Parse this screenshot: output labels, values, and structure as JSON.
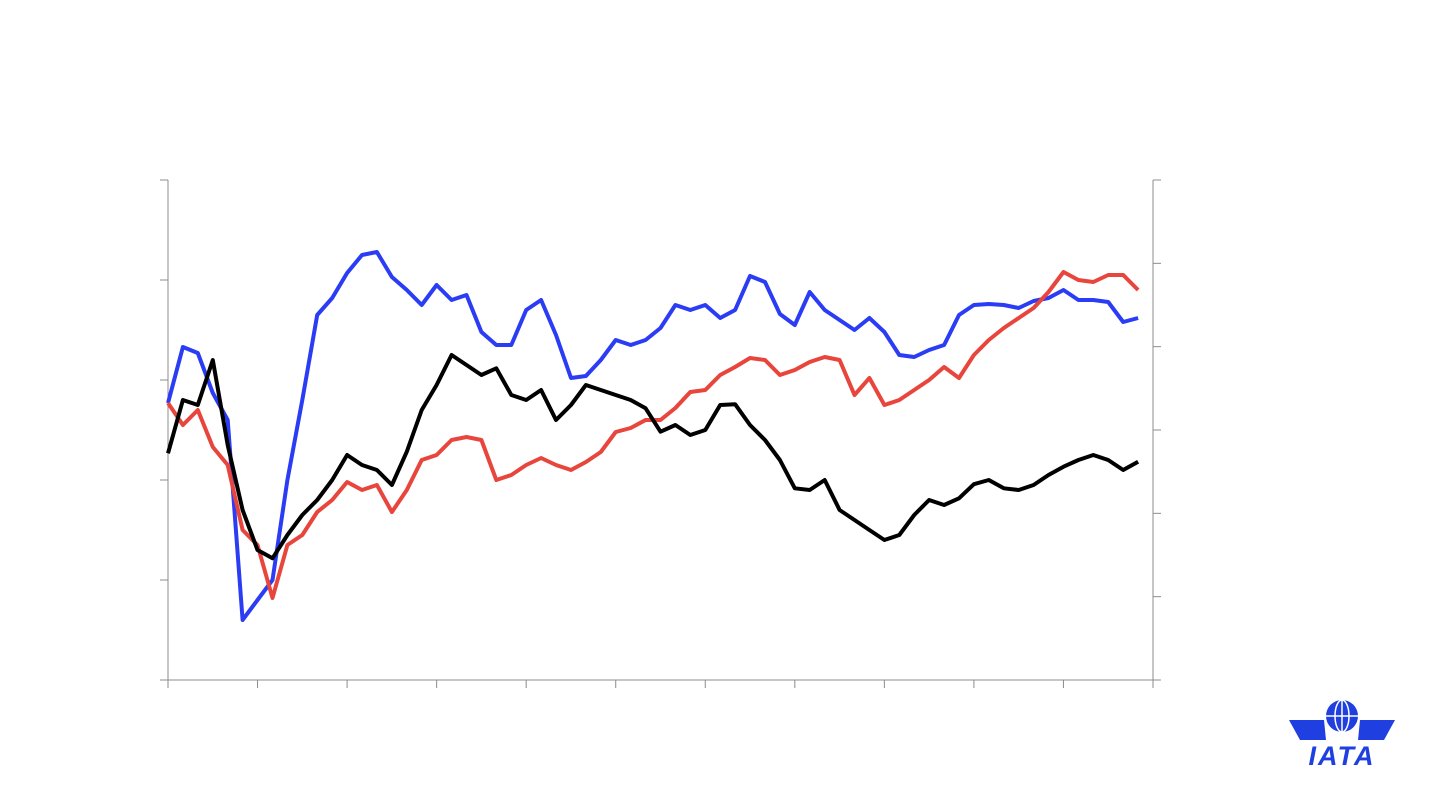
{
  "chart_data": {
    "type": "line",
    "x": [
      0,
      2,
      4,
      6,
      8,
      10,
      12,
      14,
      16,
      18,
      20,
      22,
      24,
      26,
      28,
      30,
      32,
      34,
      36,
      38,
      40,
      42,
      44,
      46,
      48,
      50,
      52,
      54,
      56,
      58,
      60,
      62,
      64,
      66,
      68,
      70,
      72,
      74,
      76,
      78,
      80,
      82,
      84,
      86,
      88,
      90,
      92,
      94,
      96,
      98,
      100,
      102,
      104,
      106,
      108,
      110,
      112,
      114,
      116,
      118,
      120,
      122,
      124,
      126,
      128,
      130
    ],
    "series": [
      {
        "color": "#2b3cf5",
        "values": [
          277,
          333,
          327,
          287,
          260,
          60,
          80,
          100,
          200,
          280,
          365,
          382,
          407,
          425,
          428,
          403,
          390,
          375,
          395,
          380,
          385,
          348,
          335,
          335,
          370,
          380,
          345,
          302,
          304,
          320,
          340,
          335,
          340,
          352,
          375,
          370,
          375,
          362,
          370,
          404,
          398,
          366,
          355,
          388,
          370,
          360,
          350,
          362,
          348,
          325,
          323,
          330,
          335,
          365,
          375,
          376,
          375,
          372,
          379,
          382,
          390,
          380,
          380,
          378,
          358,
          362
        ]
      },
      {
        "color": "#e8453c",
        "values": [
          277,
          255,
          270,
          233,
          215,
          150,
          135,
          82,
          135,
          145,
          168,
          180,
          198,
          190,
          195,
          168,
          190,
          220,
          225,
          240,
          243,
          240,
          200,
          205,
          215,
          222,
          215,
          210,
          218,
          228,
          248,
          252,
          260,
          260,
          272,
          288,
          290,
          305,
          313,
          322,
          320,
          305,
          310,
          318,
          323,
          320,
          285,
          302,
          275,
          280,
          290,
          300,
          313,
          302,
          325,
          340,
          352,
          362,
          372,
          388,
          408,
          400,
          398,
          405,
          405,
          390
        ]
      },
      {
        "color": "#000000",
        "axis": "y2",
        "values": [
          272,
          336,
          330,
          384,
          282,
          204,
          156,
          146,
          174,
          198,
          216,
          240,
          270,
          258,
          252,
          234,
          274,
          324,
          354,
          390,
          378,
          366,
          374,
          342,
          336,
          348,
          312,
          330,
          354,
          348,
          342,
          336,
          326,
          298,
          306,
          294,
          300,
          330,
          331,
          306,
          288,
          264,
          230,
          228,
          240,
          204,
          192,
          180,
          168,
          174,
          198,
          216,
          210,
          218,
          235,
          240,
          230,
          228,
          234,
          246,
          256,
          264,
          270,
          264,
          252,
          262
        ]
      }
    ],
    "xlim": [
      0,
      132
    ],
    "xticks": [
      0,
      12,
      24,
      36,
      48,
      60,
      72,
      84,
      96,
      108,
      120,
      132
    ],
    "ylim": [
      0,
      500
    ],
    "yticks": [
      0,
      100,
      200,
      300,
      400,
      500
    ],
    "y2lim": [
      0,
      600
    ],
    "y2ticks": [
      0,
      100,
      200,
      300,
      400,
      500,
      600
    ],
    "grid": false
  },
  "logo_text": "IATA"
}
